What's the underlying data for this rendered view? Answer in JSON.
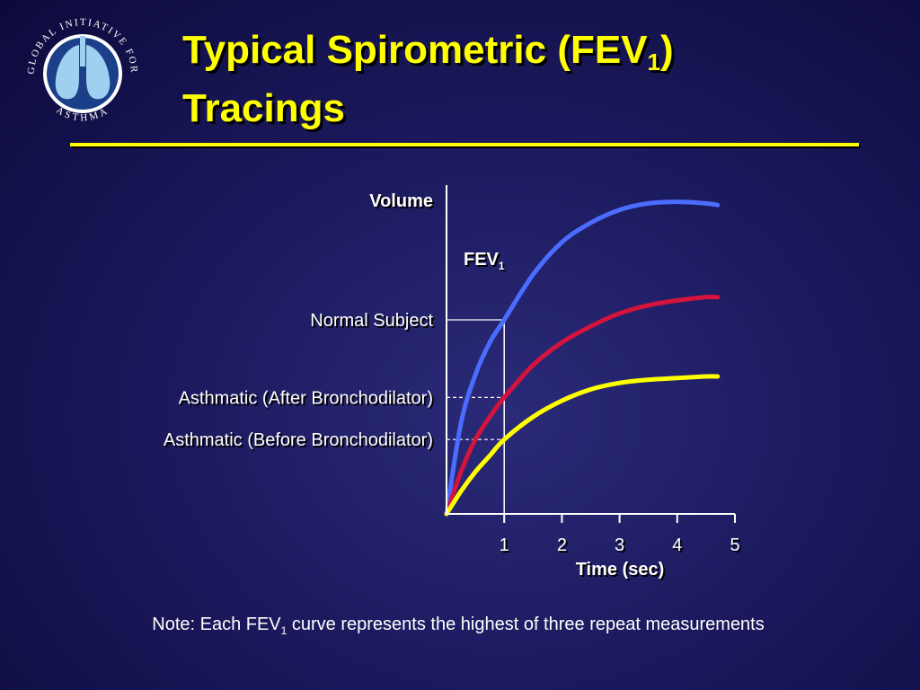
{
  "logo": {
    "text_top": "GLOBAL INITIATIVE FOR",
    "text_bottom": "ASTHMA"
  },
  "slide": {
    "title_part1": "Typical Spirometric (FEV",
    "title_sub": "1",
    "title_part2": ")",
    "title_line2": "Tracings",
    "note_part1": "Note:  Each FEV",
    "note_sub": "1",
    "note_part2": " curve represents the highest of three repeat measurements"
  },
  "chart_data": {
    "type": "line",
    "ylabel": "Volume",
    "xlabel": "Time (sec)",
    "x_ticks": [
      1,
      2,
      3,
      4,
      5
    ],
    "xlim": [
      0,
      5
    ],
    "ylim": [
      0,
      1
    ],
    "fev1_marker": {
      "label": "FEV",
      "label_sub": "1",
      "x": 1
    },
    "series": [
      {
        "name": "Normal Subject",
        "color": "#4a6cff",
        "fev1": 0.6,
        "x": [
          0,
          0.25,
          0.5,
          0.75,
          1,
          1.5,
          2,
          2.5,
          3,
          3.5,
          4,
          4.5,
          4.7
        ],
        "y": [
          0,
          0.28,
          0.43,
          0.53,
          0.6,
          0.74,
          0.84,
          0.9,
          0.94,
          0.96,
          0.965,
          0.96,
          0.955
        ]
      },
      {
        "name": "Asthmatic (After Bronchodilator)",
        "color": "#d4143c",
        "fev1": 0.36,
        "x": [
          0,
          0.25,
          0.5,
          0.75,
          1,
          1.5,
          2,
          2.5,
          3,
          3.5,
          4,
          4.5,
          4.7
        ],
        "y": [
          0,
          0.13,
          0.23,
          0.3,
          0.36,
          0.46,
          0.53,
          0.58,
          0.62,
          0.645,
          0.66,
          0.67,
          0.67
        ]
      },
      {
        "name": "Asthmatic (Before Bronchodilator)",
        "color": "#ffff00",
        "fev1": 0.23,
        "x": [
          0,
          0.25,
          0.5,
          0.75,
          1,
          1.5,
          2,
          2.5,
          3,
          3.5,
          4,
          4.5,
          4.7
        ],
        "y": [
          0,
          0.07,
          0.13,
          0.18,
          0.23,
          0.3,
          0.35,
          0.385,
          0.405,
          0.415,
          0.42,
          0.425,
          0.425
        ]
      }
    ]
  }
}
